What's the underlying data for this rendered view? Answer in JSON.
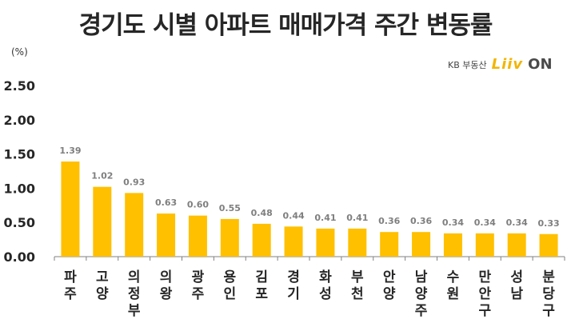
{
  "header": {
    "title": "경기도 시별 아파트 매매가격 주간 변동률",
    "unit": "(%)"
  },
  "logo": {
    "kb": "KB 부동산",
    "liiv": "Liiv",
    "on": "ON"
  },
  "colors": {
    "bar": "#FFC000",
    "label": "#7F7F7F",
    "axis": "#808080"
  },
  "chart_data": {
    "type": "bar",
    "title": "경기도 시별 아파트 매매가격 주간 변동률",
    "ylabel": "(%)",
    "ylim": [
      0,
      2.5
    ],
    "yticks": [
      "0.00",
      "0.50",
      "1.00",
      "1.50",
      "2.00",
      "2.50"
    ],
    "grid": false,
    "categories": [
      "파주",
      "고양",
      "의정부",
      "의왕",
      "광주",
      "용인",
      "김포",
      "경기",
      "화성",
      "부천",
      "안양",
      "남양주",
      "수원",
      "만안구",
      "성남",
      "분당구"
    ],
    "values": [
      1.39,
      1.02,
      0.93,
      0.63,
      0.6,
      0.55,
      0.48,
      0.44,
      0.41,
      0.41,
      0.36,
      0.36,
      0.34,
      0.34,
      0.34,
      0.33
    ],
    "value_labels": [
      "1.39",
      "1.02",
      "0.93",
      "0.63",
      "0.60",
      "0.55",
      "0.48",
      "0.44",
      "0.41",
      "0.41",
      "0.36",
      "0.36",
      "0.34",
      "0.34",
      "0.34",
      "0.33"
    ]
  }
}
